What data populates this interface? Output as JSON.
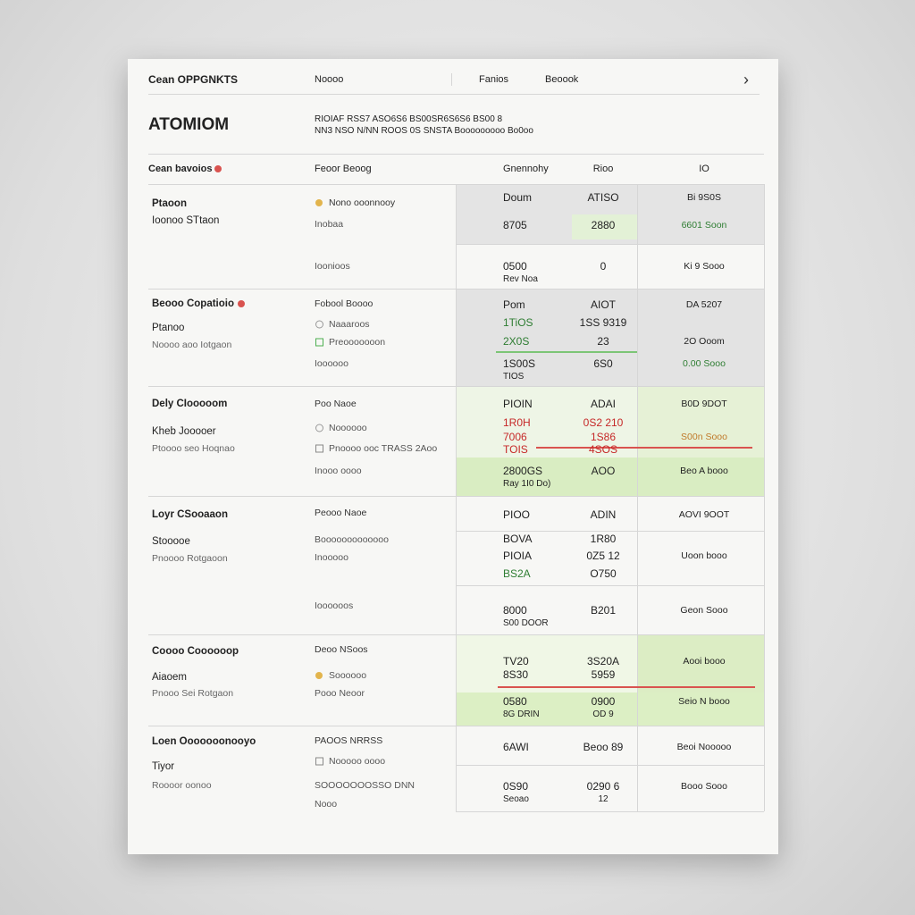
{
  "header": {
    "brand": "Cean OPPGNKTS",
    "nav": [
      "Noooo",
      "Fanios",
      "Beoook"
    ],
    "title": "ATOMIOM",
    "description": [
      "RIOIAF RSS7 ASO6S6 BS00SR6S6S6 BS00 8",
      "NN3 NSO N/NN ROOS 0S SNSTA Booooooooo Bo0oo"
    ]
  },
  "table": {
    "header": {
      "left": "Cean bavoios",
      "mid": "Feoor Beoog",
      "columns": [
        "Gnennohy",
        "Rioo",
        "IO"
      ]
    },
    "sections": [
      {
        "left": [
          "Ptaoon",
          "Ioonoo STtaon"
        ],
        "mid": [
          "Nono ooonnooy",
          "Inobaa",
          "Ioonioos"
        ],
        "rows": [
          [
            "Doum",
            "ATISO",
            "Bi 9S0S"
          ],
          [
            "8705",
            "2880",
            "6601 Soon"
          ],
          [
            [
              "0500",
              "Rev Noa"
            ],
            "0",
            "Ki 9 Sooo"
          ]
        ]
      },
      {
        "left": [
          "Beooo Copatioio",
          "Ptanoo",
          "Noooo aoo Iotgaon"
        ],
        "mid": [
          "Fobool Boooo",
          "Naaaroos",
          "Preooooooon",
          "Ioooooo"
        ],
        "rows": [
          [
            "Pom",
            "AIOT",
            "DA 5207"
          ],
          [
            "1TiOS",
            "1SS 9319"
          ],
          [
            "2X0S",
            "23",
            "2O Ooom"
          ],
          [
            [
              "1S00S",
              "TIOS"
            ],
            "6S0",
            "0.00 Sooo"
          ]
        ]
      },
      {
        "left": [
          "Dely CIooooom",
          "Kheb Jooooer",
          "Ptoooo seo Hoqnao"
        ],
        "mid": [
          "Poo Naoe",
          "Noooooo",
          "Pnoooo ooc TRASS 2Aoo",
          "Inooo oooo"
        ],
        "rows": [
          [
            "PIOIN",
            "ADAI",
            "B0D 9DOT"
          ],
          [
            "1R0H",
            "0S2 210"
          ],
          [
            "7006",
            "1S86",
            "S00n Sooo"
          ],
          [
            "TOIS",
            "4SOS"
          ],
          [
            [
              "2800GS",
              "Ray 1I0 Do)"
            ],
            "AOO",
            "Beo A booo"
          ]
        ]
      },
      {
        "left": [
          "Loyr CSooaaon",
          "Stooooe",
          "Pnoooo Rotgaoon"
        ],
        "mid": [
          "Peooo Naoe",
          "Booooooooooooo",
          "Inooooo",
          "Ioooooos"
        ],
        "rows": [
          [
            "PIOO",
            "ADIN",
            "AOVI 9OOT"
          ],
          [
            "BOVA",
            "1R80"
          ],
          [
            "PIOIA",
            "0Z5 12",
            "Uoon booo"
          ],
          [
            "BS2A",
            "O750"
          ],
          [
            [
              "8000",
              "S00 DOOR"
            ],
            "B201",
            "Geon Sooo"
          ]
        ]
      },
      {
        "left": [
          "Coooo Coooooop",
          "Aiaoem",
          "Pnooo Sei Rotgaon"
        ],
        "mid": [
          "Deoo NSoos",
          "Soooooo",
          "Pooo Neoor"
        ],
        "rows": [
          [
            "TV20",
            "3S20A",
            "Aooi booo"
          ],
          [
            "8S30",
            "5959"
          ],
          [
            [
              "0580",
              "8G DRIN"
            ],
            [
              "0900",
              "OD 9"
            ],
            "Seio N booo"
          ]
        ]
      },
      {
        "left": [
          "Loen Ooooooonooyo",
          "Tiyor",
          "Roooor oonoo"
        ],
        "mid": [
          "PAOOS NRRSS",
          "Nooooo oooo",
          "SOOOOOOOSSO DNN",
          "Nooo"
        ],
        "rows": [
          [
            "6AWI",
            "Beoo 89",
            "Beoi Nooooo"
          ],
          [
            [
              "0S90",
              "Seoao"
            ],
            [
              "0290 6",
              "12"
            ],
            "Booo Sooo"
          ]
        ]
      }
    ]
  }
}
